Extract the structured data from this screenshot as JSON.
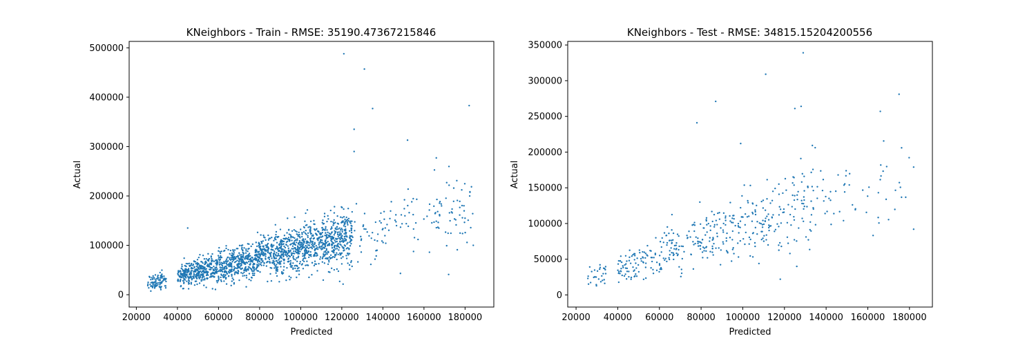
{
  "chart_data": [
    {
      "type": "scatter",
      "title": "KNeighbors - Train - RMSE: 35190.47367215846",
      "xlabel": "Predicted",
      "ylabel": "Actual",
      "xlim": [
        16500,
        194000
      ],
      "ylim": [
        -25000,
        513000
      ],
      "xticks": [
        20000,
        40000,
        60000,
        80000,
        100000,
        120000,
        140000,
        160000,
        180000
      ],
      "yticks": [
        0,
        100000,
        200000,
        300000,
        400000,
        500000
      ],
      "grid": false,
      "marker_color": "#1f77b4",
      "approx_point_count": 2000,
      "notable_points": [
        {
          "x": 121000,
          "y": 488000
        },
        {
          "x": 131000,
          "y": 457000
        },
        {
          "x": 182000,
          "y": 383000
        },
        {
          "x": 135000,
          "y": 377000
        },
        {
          "x": 126000,
          "y": 335000
        },
        {
          "x": 152000,
          "y": 313000
        },
        {
          "x": 126000,
          "y": 290000
        },
        {
          "x": 166000,
          "y": 277000
        },
        {
          "x": 45000,
          "y": 135000
        },
        {
          "x": 172000,
          "y": 41000
        },
        {
          "x": 184000,
          "y": 100000
        },
        {
          "x": 180000,
          "y": 155000
        }
      ]
    },
    {
      "type": "scatter",
      "title": "KNeighbors - Test - RMSE: 34815.15204200556",
      "xlabel": "Predicted",
      "ylabel": "Actual",
      "xlim": [
        16000,
        191000
      ],
      "ylim": [
        -17000,
        355000
      ],
      "xticks": [
        20000,
        40000,
        60000,
        80000,
        100000,
        120000,
        140000,
        160000,
        180000
      ],
      "yticks": [
        0,
        50000,
        100000,
        150000,
        200000,
        250000,
        300000,
        350000
      ],
      "grid": false,
      "marker_color": "#1f77b4",
      "approx_point_count": 520,
      "notable_points": [
        {
          "x": 129000,
          "y": 339000
        },
        {
          "x": 111000,
          "y": 309000
        },
        {
          "x": 175000,
          "y": 281000
        },
        {
          "x": 87000,
          "y": 271000
        },
        {
          "x": 128000,
          "y": 264000
        },
        {
          "x": 125000,
          "y": 261000
        },
        {
          "x": 166000,
          "y": 257000
        },
        {
          "x": 78000,
          "y": 241000
        },
        {
          "x": 99000,
          "y": 212000
        },
        {
          "x": 182000,
          "y": 92000
        },
        {
          "x": 182000,
          "y": 179000
        },
        {
          "x": 118000,
          "y": 22000
        }
      ]
    }
  ]
}
